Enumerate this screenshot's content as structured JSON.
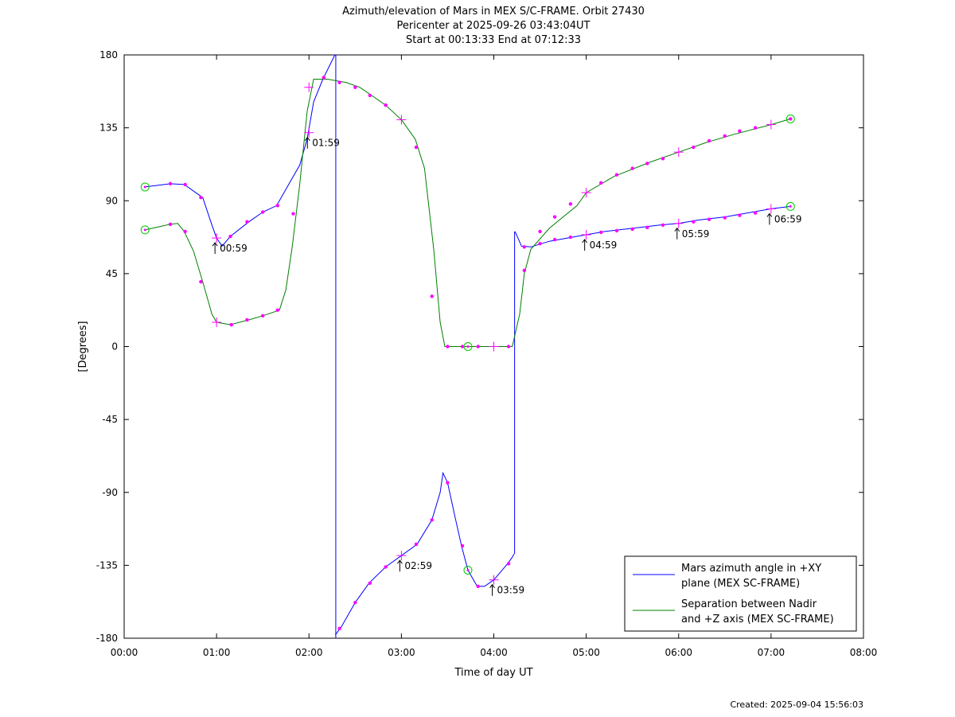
{
  "page": {
    "title_lines": [
      "Azimuth/elevation of Mars in MEX S/C-FRAME.  Orbit 27430",
      "Pericenter at 2025-09-26 03:43:04UT",
      "Start at 00:13:33 End at 07:12:33"
    ],
    "footer": "Created: 2025-09-04 15:56:03"
  },
  "chart_data": {
    "type": "line",
    "xlabel": "Time of day UT",
    "ylabel": "[Degrees]",
    "xlim": [
      0,
      8
    ],
    "ylim": [
      -180,
      180
    ],
    "x_ticks": [
      0,
      1,
      2,
      3,
      4,
      5,
      6,
      7,
      8
    ],
    "x_tick_labels": [
      "00:00",
      "01:00",
      "02:00",
      "03:00",
      "04:00",
      "05:00",
      "06:00",
      "07:00",
      "08:00"
    ],
    "y_ticks": [
      180,
      135,
      90,
      45,
      0,
      -45,
      -90,
      -135,
      -180
    ],
    "y_tick_labels": [
      "180",
      "135",
      "90",
      "45",
      "0",
      "-45",
      "-90",
      "-135",
      "-180"
    ],
    "grid": false,
    "legend_position": "bottom-right",
    "series": [
      {
        "name": "Mars azimuth angle in +XY\nplane (MEX SC-FRAME)",
        "color": "#0000ff",
        "segments": [
          [
            [
              0.226,
              98.5
            ],
            [
              0.5,
              100.5
            ],
            [
              0.65,
              100
            ],
            [
              0.85,
              92
            ],
            [
              0.95,
              75
            ],
            [
              1.0,
              67
            ],
            [
              1.06,
              62
            ],
            [
              1.15,
              68
            ],
            [
              1.35,
              77
            ],
            [
              1.5,
              83
            ],
            [
              1.65,
              87
            ],
            [
              1.8,
              102
            ],
            [
              1.9,
              112
            ],
            [
              1.98,
              128
            ],
            [
              2.05,
              151
            ],
            [
              2.15,
              165
            ],
            [
              2.28,
              180
            ]
          ],
          [
            [
              2.285,
              -178
            ],
            [
              2.35,
              -173
            ],
            [
              2.5,
              -158
            ],
            [
              2.65,
              -146
            ],
            [
              2.83,
              -136
            ],
            [
              3.0,
              -129
            ],
            [
              3.17,
              -122
            ],
            [
              3.33,
              -107
            ],
            [
              3.42,
              -90
            ],
            [
              3.45,
              -78
            ],
            [
              3.5,
              -84
            ],
            [
              3.58,
              -105
            ],
            [
              3.65,
              -123
            ],
            [
              3.72,
              -138
            ],
            [
              3.82,
              -148
            ],
            [
              3.9,
              -148
            ],
            [
              4.0,
              -144
            ],
            [
              4.15,
              -134
            ],
            [
              4.2,
              -130
            ],
            [
              4.22,
              -128
            ]
          ],
          [
            [
              4.23,
              71
            ],
            [
              4.3,
              62
            ],
            [
              4.4,
              61.5
            ],
            [
              4.6,
              65
            ],
            [
              4.9,
              68
            ],
            [
              5.0,
              69
            ],
            [
              5.2,
              71
            ],
            [
              5.5,
              73
            ],
            [
              5.8,
              75
            ],
            [
              6.0,
              76
            ],
            [
              6.2,
              78
            ],
            [
              6.5,
              80
            ],
            [
              6.8,
              83
            ],
            [
              7.0,
              85
            ],
            [
              7.21,
              86.5
            ]
          ]
        ],
        "vertical_jumps": [
          {
            "x": 2.29,
            "y_from": 180,
            "y_to": -180
          },
          {
            "x": 4.225,
            "y_from": -128,
            "y_to": 71
          }
        ]
      },
      {
        "name": "Separation between Nadir\nand +Z axis (MEX SC-FRAME)",
        "color": "#008000",
        "segments": [
          [
            [
              0.226,
              72
            ],
            [
              0.5,
              75.5
            ],
            [
              0.58,
              76
            ],
            [
              0.65,
              71
            ],
            [
              0.75,
              59
            ],
            [
              0.85,
              40
            ],
            [
              0.95,
              20
            ],
            [
              1.0,
              15
            ],
            [
              1.15,
              13.5
            ],
            [
              1.35,
              16.5
            ],
            [
              1.5,
              19
            ],
            [
              1.68,
              22.5
            ],
            [
              1.75,
              35
            ],
            [
              1.82,
              62
            ],
            [
              1.9,
              100
            ],
            [
              1.98,
              145
            ],
            [
              2.05,
              165
            ],
            [
              2.2,
              165
            ],
            [
              2.4,
              163
            ],
            [
              2.55,
              160
            ],
            [
              2.83,
              149
            ],
            [
              3.0,
              140
            ],
            [
              3.15,
              128
            ],
            [
              3.25,
              110
            ],
            [
              3.35,
              60
            ],
            [
              3.42,
              15
            ],
            [
              3.47,
              0
            ],
            [
              3.6,
              0
            ],
            [
              3.9,
              0
            ],
            [
              4.2,
              0
            ],
            [
              4.28,
              20
            ],
            [
              4.33,
              45
            ],
            [
              4.4,
              60
            ],
            [
              4.6,
              73
            ],
            [
              4.9,
              87
            ],
            [
              5.0,
              95
            ],
            [
              5.3,
              105
            ],
            [
              5.7,
              114
            ],
            [
              6.0,
              120
            ],
            [
              6.3,
              126
            ],
            [
              6.6,
              131
            ],
            [
              7.0,
              137
            ],
            [
              7.21,
              140.5
            ]
          ]
        ]
      }
    ],
    "markers_dot": [
      [
        0.5,
        100.5
      ],
      [
        0.66,
        100
      ],
      [
        0.83,
        92
      ],
      [
        1.15,
        68
      ],
      [
        1.33,
        77
      ],
      [
        1.5,
        83
      ],
      [
        1.66,
        87
      ],
      [
        2.16,
        166
      ],
      [
        2.33,
        -174
      ],
      [
        2.5,
        -158
      ],
      [
        2.66,
        -146
      ],
      [
        2.83,
        -136
      ],
      [
        3.16,
        -122
      ],
      [
        3.33,
        -107
      ],
      [
        3.5,
        -84
      ],
      [
        3.66,
        -123
      ],
      [
        3.83,
        -148
      ],
      [
        4.16,
        -134
      ],
      [
        4.33,
        61.5
      ],
      [
        4.5,
        63.5
      ],
      [
        4.66,
        66
      ],
      [
        4.83,
        67.5
      ],
      [
        5.16,
        70.5
      ],
      [
        5.33,
        71.5
      ],
      [
        5.5,
        72.5
      ],
      [
        5.66,
        73.5
      ],
      [
        5.83,
        75
      ],
      [
        6.16,
        77
      ],
      [
        6.33,
        78.5
      ],
      [
        6.5,
        79.5
      ],
      [
        6.66,
        81
      ],
      [
        6.83,
        82.5
      ],
      [
        0.5,
        75.5
      ],
      [
        0.66,
        71
      ],
      [
        0.83,
        40
      ],
      [
        1.16,
        13.5
      ],
      [
        1.33,
        16.5
      ],
      [
        1.5,
        19
      ],
      [
        1.66,
        22.5
      ],
      [
        1.83,
        82
      ],
      [
        2.16,
        166
      ],
      [
        2.33,
        163
      ],
      [
        2.5,
        160
      ],
      [
        2.66,
        155
      ],
      [
        2.83,
        149
      ],
      [
        3.16,
        123
      ],
      [
        3.33,
        31
      ],
      [
        3.5,
        0
      ],
      [
        3.66,
        0
      ],
      [
        3.83,
        0
      ],
      [
        4.16,
        0
      ],
      [
        4.33,
        47
      ],
      [
        4.5,
        71
      ],
      [
        4.66,
        80
      ],
      [
        4.83,
        88
      ],
      [
        5.16,
        101
      ],
      [
        5.33,
        106
      ],
      [
        5.5,
        110
      ],
      [
        5.66,
        113
      ],
      [
        5.83,
        116
      ],
      [
        6.16,
        123
      ],
      [
        6.33,
        127
      ],
      [
        6.5,
        130
      ],
      [
        6.66,
        133
      ],
      [
        6.83,
        135
      ],
      [
        7.21,
        140.5
      ]
    ],
    "markers_plus": [
      [
        1.0,
        67
      ],
      [
        2.0,
        132
      ],
      [
        3.0,
        -129
      ],
      [
        4.0,
        -144
      ],
      [
        5.0,
        69
      ],
      [
        6.0,
        76
      ],
      [
        7.0,
        85
      ],
      [
        1.0,
        15
      ],
      [
        2.0,
        160
      ],
      [
        3.0,
        140
      ],
      [
        4.0,
        0
      ],
      [
        5.0,
        95
      ],
      [
        6.0,
        120
      ],
      [
        7.0,
        137
      ]
    ],
    "markers_circle": [
      [
        0.226,
        98.5
      ],
      [
        0.226,
        72
      ],
      [
        3.72,
        -138
      ],
      [
        3.72,
        0
      ],
      [
        7.21,
        140.5
      ],
      [
        7.21,
        86.5
      ]
    ],
    "annotations": [
      {
        "text": "00:59",
        "x": 0.983,
        "y": 67
      },
      {
        "text": "01:59",
        "x": 1.983,
        "y": 132
      },
      {
        "text": "02:59",
        "x": 2.983,
        "y": -129
      },
      {
        "text": "03:59",
        "x": 3.983,
        "y": -144
      },
      {
        "text": "04:59",
        "x": 4.983,
        "y": 69
      },
      {
        "text": "05:59",
        "x": 5.983,
        "y": 76
      },
      {
        "text": "06:59",
        "x": 6.983,
        "y": 85
      }
    ]
  }
}
